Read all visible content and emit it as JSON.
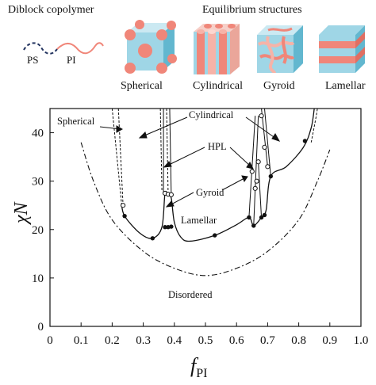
{
  "header": {
    "copolymer_title": "Diblock copolymer",
    "ps_label": "PS",
    "pi_label": "PI",
    "equilibrium_title": "Equilibrium structures",
    "structures": [
      "Spherical",
      "Cylindrical",
      "Gyroid",
      "Lamellar"
    ]
  },
  "colors": {
    "cyan": "#9fd6e6",
    "cyan_dark": "#62b7cf",
    "salmon": "#f08679",
    "salmon_light": "#f6b3a8",
    "navy": "#22335f",
    "curve": "#111111"
  },
  "icons": [
    "copolymer-chain-icon",
    "spherical-structure-icon",
    "cylindrical-structure-icon",
    "gyroid-structure-icon",
    "lamellar-structure-icon"
  ],
  "chart_data": {
    "type": "line",
    "title": "",
    "xlabel": "f_PI",
    "ylabel": "χN",
    "xlim": [
      0,
      1.0
    ],
    "ylim": [
      0,
      45
    ],
    "xticks": [
      "0",
      "0.1",
      "0.2",
      "0.3",
      "0.4",
      "0.5",
      "0.6",
      "0.7",
      "0.8",
      "0.9",
      "1.0"
    ],
    "yticks": [
      "0",
      "10",
      "20",
      "30",
      "40"
    ],
    "grid": false,
    "phase_labels": [
      "Spherical",
      "Cylindrical",
      "HPL",
      "Gyroid",
      "Lamellar",
      "Disordered"
    ],
    "series": [
      {
        "style": "solid-boundary",
        "points": [
          [
            0.23,
            25.5
          ],
          [
            0.24,
            22.8
          ],
          [
            0.29,
            19.2
          ],
          [
            0.33,
            18.2
          ],
          [
            0.36,
            20.5
          ],
          [
            0.37,
            27.5
          ],
          [
            0.38,
            27.0
          ],
          [
            0.39,
            26.5
          ],
          [
            0.4,
            21.5
          ],
          [
            0.42,
            18.5
          ],
          [
            0.45,
            17.6
          ],
          [
            0.53,
            18.8
          ],
          [
            0.6,
            21.0
          ],
          [
            0.64,
            22.5
          ],
          [
            0.655,
            20.8
          ],
          [
            0.68,
            22.5
          ],
          [
            0.695,
            24.0
          ],
          [
            0.71,
            31.0
          ],
          [
            0.76,
            33.0
          ],
          [
            0.815,
            37.0
          ],
          [
            0.84,
            41.0
          ],
          [
            0.85,
            45.0
          ]
        ]
      },
      {
        "style": "dash-dot-mean-field",
        "points": [
          [
            0.1,
            38.0
          ],
          [
            0.14,
            30.0
          ],
          [
            0.2,
            22.0
          ],
          [
            0.3,
            15.5
          ],
          [
            0.4,
            12.0
          ],
          [
            0.5,
            10.5
          ],
          [
            0.6,
            12.0
          ],
          [
            0.7,
            15.5
          ],
          [
            0.8,
            22.0
          ],
          [
            0.86,
            30.0
          ],
          [
            0.9,
            36.5
          ]
        ]
      },
      {
        "style": "filled-markers",
        "points": [
          [
            0.24,
            22.8
          ],
          [
            0.33,
            18.2
          ],
          [
            0.37,
            20.5
          ],
          [
            0.38,
            20.5
          ],
          [
            0.39,
            20.6
          ],
          [
            0.53,
            18.8
          ],
          [
            0.64,
            22.5
          ],
          [
            0.655,
            20.8
          ],
          [
            0.68,
            22.5
          ],
          [
            0.69,
            23.0
          ],
          [
            0.71,
            31.0
          ],
          [
            0.82,
            38.3
          ]
        ]
      },
      {
        "style": "open-markers",
        "points": [
          [
            0.235,
            25.0
          ],
          [
            0.37,
            27.5
          ],
          [
            0.38,
            27.3
          ],
          [
            0.39,
            27.2
          ],
          [
            0.65,
            32.0
          ],
          [
            0.66,
            28.5
          ],
          [
            0.665,
            30.0
          ],
          [
            0.67,
            34.0
          ],
          [
            0.68,
            43.5
          ],
          [
            0.69,
            37.0
          ],
          [
            0.7,
            33.0
          ]
        ]
      }
    ]
  }
}
